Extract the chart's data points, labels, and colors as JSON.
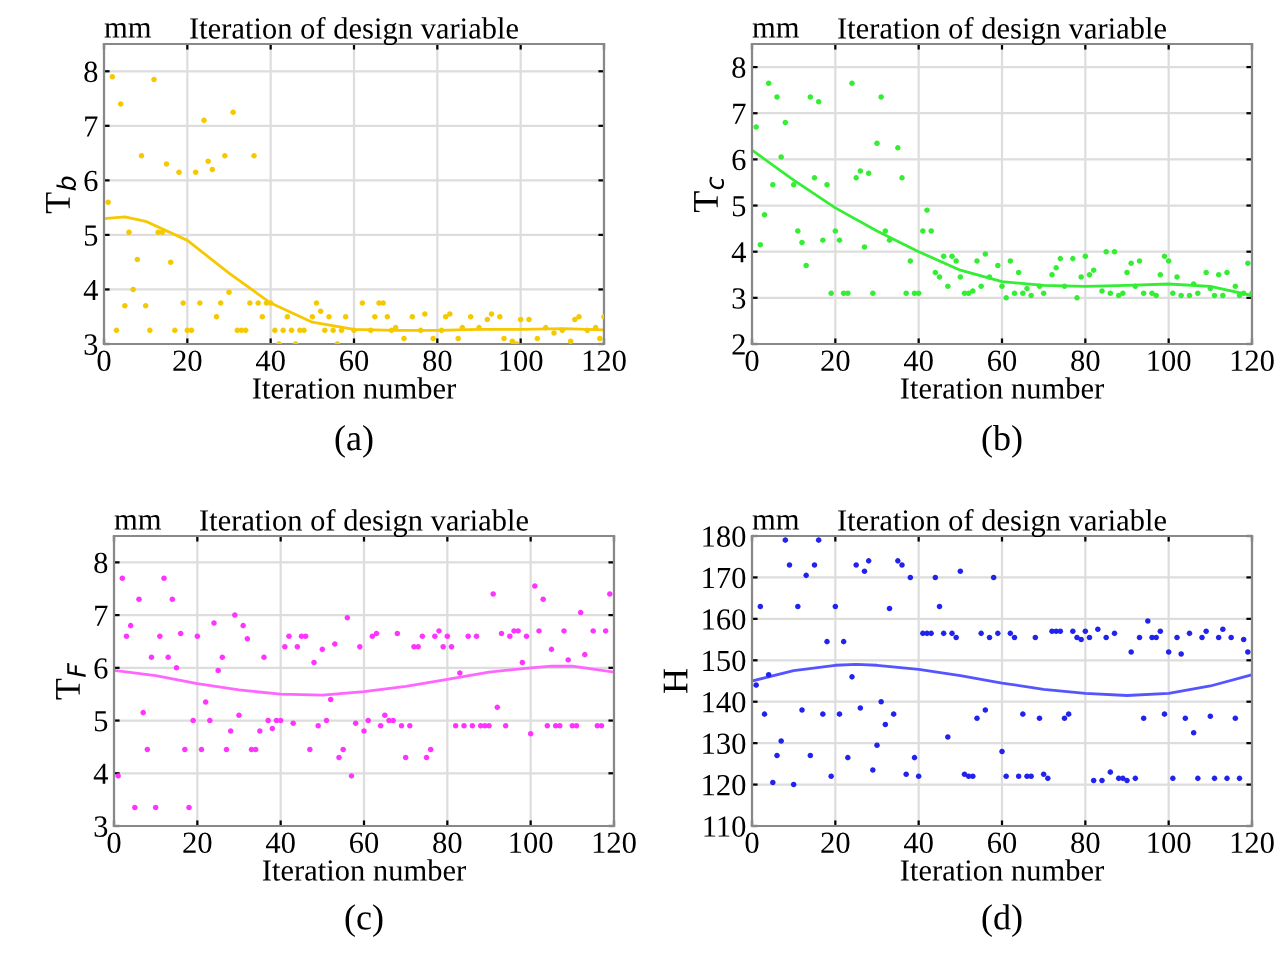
{
  "chart_data": [
    {
      "type": "scatter",
      "title": "Iteration of design variable",
      "xlabel": "Iteration number",
      "ylabel": "T$_{b}$",
      "annotations": [
        "mm",
        "(a)"
      ],
      "xlim": [
        0,
        120
      ],
      "xticks": [
        0,
        20,
        40,
        60,
        80,
        100,
        120
      ],
      "ylim": [
        3,
        8.5
      ],
      "yticks": [
        3,
        4,
        5,
        6,
        7,
        8
      ],
      "grid": true,
      "series": [
        {
          "marker": "circle",
          "color": "#f5c800",
          "x": [
            1,
            2,
            3,
            4,
            5,
            6,
            7,
            8,
            9,
            10,
            11,
            12,
            13,
            14,
            15,
            16,
            17,
            18,
            19,
            20,
            21,
            22,
            23,
            24,
            25,
            26,
            27,
            28,
            29,
            30,
            31,
            32,
            33,
            34,
            35,
            36,
            37,
            38,
            39,
            40,
            41,
            42,
            43,
            44,
            45,
            46,
            47,
            48,
            50,
            51,
            52,
            53,
            54,
            55,
            56,
            57,
            58,
            60,
            62,
            64,
            65,
            66,
            67,
            68,
            69,
            70,
            72,
            74,
            76,
            77,
            79,
            81,
            82,
            83,
            85,
            86,
            88,
            90,
            92,
            93,
            95,
            96,
            98,
            99,
            100,
            102,
            104,
            106,
            108,
            110,
            112,
            113,
            114,
            116,
            118,
            119,
            120
          ],
          "values": [
            5.6,
            7.9,
            3.25,
            7.4,
            3.7,
            5.05,
            4.0,
            4.55,
            6.45,
            3.7,
            3.25,
            7.85,
            5.05,
            5.05,
            6.3,
            4.5,
            3.25,
            6.15,
            3.75,
            3.25,
            3.25,
            6.15,
            3.75,
            7.1,
            6.35,
            6.2,
            3.5,
            3.75,
            6.45,
            3.95,
            7.25,
            3.25,
            3.25,
            3.25,
            3.75,
            6.45,
            3.75,
            3.5,
            3.75,
            3.75,
            3.25,
            3.0,
            3.25,
            3.5,
            3.25,
            3.0,
            3.25,
            3.25,
            3.5,
            3.75,
            3.6,
            3.25,
            3.5,
            3.25,
            3.0,
            3.25,
            3.5,
            3.25,
            3.75,
            3.25,
            3.5,
            3.75,
            3.75,
            3.5,
            3.25,
            3.3,
            3.1,
            3.5,
            3.25,
            3.55,
            3.1,
            3.25,
            3.5,
            3.55,
            3.1,
            3.3,
            3.5,
            3.3,
            3.45,
            3.55,
            3.5,
            3.1,
            3.05,
            3.0,
            3.45,
            3.45,
            3.1,
            3.3,
            3.2,
            3.25,
            3.05,
            3.45,
            3.5,
            3.25,
            3.3,
            3.1,
            3.5
          ]
        },
        {
          "type": "line",
          "color": "#f5c800",
          "x": [
            0,
            5,
            10,
            20,
            30,
            40,
            50,
            60,
            70,
            80,
            90,
            100,
            110,
            120
          ],
          "values": [
            5.3,
            5.33,
            5.25,
            4.9,
            4.3,
            3.75,
            3.4,
            3.27,
            3.25,
            3.25,
            3.27,
            3.27,
            3.28,
            3.26
          ]
        }
      ]
    },
    {
      "type": "scatter",
      "title": "Iteration of design variable",
      "xlabel": "Iteration number",
      "ylabel": "T$_{c}$",
      "annotations": [
        "mm",
        "(b)"
      ],
      "xlim": [
        0,
        120
      ],
      "xticks": [
        0,
        20,
        40,
        60,
        80,
        100,
        120
      ],
      "ylim": [
        2,
        8.5
      ],
      "yticks": [
        2,
        3,
        4,
        5,
        6,
        7,
        8
      ],
      "grid": true,
      "series": [
        {
          "marker": "circle",
          "color": "#33ee33",
          "x": [
            1,
            2,
            3,
            4,
            5,
            6,
            7,
            8,
            10,
            11,
            12,
            13,
            14,
            15,
            16,
            17,
            18,
            19,
            20,
            21,
            22,
            23,
            24,
            25,
            26,
            27,
            28,
            29,
            30,
            31,
            32,
            33,
            35,
            36,
            37,
            38,
            39,
            40,
            41,
            42,
            43,
            44,
            45,
            46,
            47,
            48,
            49,
            50,
            51,
            52,
            53,
            54,
            55,
            56,
            57,
            59,
            60,
            61,
            62,
            63,
            64,
            65,
            66,
            67,
            69,
            70,
            72,
            73,
            74,
            75,
            77,
            78,
            79,
            80,
            81,
            82,
            84,
            85,
            86,
            87,
            88,
            89,
            90,
            91,
            92,
            93,
            94,
            96,
            97,
            98,
            99,
            100,
            101,
            102,
            103,
            105,
            106,
            107,
            109,
            110,
            111,
            112,
            113,
            114,
            116,
            117,
            118,
            119,
            120
          ],
          "values": [
            6.7,
            4.15,
            4.8,
            7.65,
            5.45,
            7.35,
            6.05,
            6.8,
            5.45,
            4.45,
            4.2,
            3.7,
            7.35,
            5.6,
            7.25,
            4.25,
            5.45,
            3.1,
            4.45,
            4.25,
            3.1,
            3.1,
            7.65,
            5.6,
            5.75,
            4.1,
            5.7,
            3.1,
            6.35,
            7.35,
            4.45,
            4.25,
            6.25,
            5.6,
            3.1,
            3.8,
            3.1,
            3.1,
            4.45,
            4.9,
            4.45,
            3.55,
            3.45,
            3.9,
            3.25,
            3.9,
            3.8,
            3.45,
            3.1,
            3.1,
            3.15,
            3.8,
            3.25,
            3.95,
            3.45,
            3.7,
            3.25,
            3.0,
            3.8,
            3.1,
            3.55,
            3.1,
            3.2,
            3.05,
            3.25,
            3.1,
            3.5,
            3.65,
            3.85,
            3.25,
            3.85,
            3.0,
            3.45,
            3.9,
            3.5,
            3.6,
            3.15,
            4.0,
            3.1,
            4.0,
            3.05,
            3.1,
            3.55,
            3.75,
            3.25,
            3.8,
            3.1,
            3.1,
            3.05,
            3.5,
            3.9,
            3.8,
            3.1,
            3.45,
            3.05,
            3.05,
            3.3,
            3.1,
            3.55,
            3.2,
            3.05,
            3.5,
            3.05,
            3.55,
            3.25,
            3.05,
            3.1,
            3.75,
            3.1
          ]
        },
        {
          "type": "line",
          "color": "#33ee33",
          "x": [
            0,
            10,
            20,
            30,
            40,
            50,
            60,
            70,
            80,
            90,
            100,
            110,
            120
          ],
          "values": [
            6.2,
            5.55,
            4.95,
            4.45,
            4.0,
            3.6,
            3.35,
            3.27,
            3.25,
            3.27,
            3.3,
            3.25,
            3.05
          ]
        }
      ]
    },
    {
      "type": "scatter",
      "title": "Iteration of design variable",
      "xlabel": "Iteration number",
      "ylabel": "T$_{F}$",
      "annotations": [
        "mm",
        "(c)"
      ],
      "xlim": [
        0,
        120
      ],
      "xticks": [
        0,
        20,
        40,
        60,
        80,
        100,
        120
      ],
      "ylim": [
        3,
        8.5
      ],
      "yticks": [
        3,
        4,
        5,
        6,
        7,
        8
      ],
      "grid": true,
      "series": [
        {
          "marker": "circle",
          "color": "#ff33ff",
          "x": [
            1,
            2,
            3,
            4,
            5,
            6,
            7,
            8,
            9,
            10,
            11,
            12,
            13,
            14,
            15,
            16,
            17,
            18,
            19,
            20,
            21,
            22,
            23,
            24,
            25,
            26,
            27,
            28,
            29,
            30,
            31,
            32,
            33,
            34,
            35,
            36,
            37,
            38,
            39,
            40,
            41,
            42,
            43,
            44,
            45,
            46,
            47,
            48,
            49,
            50,
            51,
            52,
            53,
            54,
            55,
            56,
            57,
            58,
            59,
            60,
            61,
            62,
            63,
            64,
            65,
            66,
            67,
            68,
            69,
            70,
            71,
            72,
            73,
            74,
            75,
            76,
            77,
            78,
            79,
            80,
            81,
            82,
            83,
            84,
            85,
            86,
            87,
            88,
            89,
            90,
            91,
            92,
            93,
            94,
            95,
            96,
            97,
            98,
            99,
            100,
            101,
            102,
            103,
            104,
            105,
            106,
            107,
            108,
            109,
            110,
            111,
            112,
            113,
            115,
            116,
            117,
            118,
            119
          ],
          "values": [
            3.95,
            7.7,
            6.6,
            6.8,
            3.35,
            7.3,
            5.15,
            4.45,
            6.2,
            3.35,
            6.6,
            7.7,
            6.2,
            7.3,
            6.0,
            6.65,
            4.45,
            3.35,
            5.0,
            6.6,
            4.45,
            5.35,
            5.0,
            6.85,
            5.95,
            6.2,
            4.45,
            4.8,
            7.0,
            5.1,
            6.8,
            6.55,
            4.45,
            4.45,
            4.8,
            6.2,
            5.0,
            4.85,
            5.0,
            5.0,
            6.4,
            6.6,
            4.95,
            6.4,
            6.6,
            6.6,
            4.45,
            6.1,
            4.9,
            6.35,
            5.0,
            5.4,
            6.45,
            4.3,
            4.45,
            6.95,
            3.95,
            4.95,
            6.4,
            4.8,
            5.0,
            6.6,
            6.65,
            4.9,
            5.1,
            5.0,
            5.0,
            6.65,
            4.9,
            4.3,
            4.9,
            6.4,
            6.4,
            6.6,
            4.3,
            4.45,
            6.6,
            6.7,
            6.4,
            6.6,
            6.4,
            4.9,
            5.9,
            4.9,
            6.6,
            4.9,
            6.6,
            4.9,
            4.9,
            4.9,
            7.4,
            5.25,
            6.65,
            4.9,
            6.6,
            6.7,
            6.7,
            6.1,
            6.6,
            4.75,
            7.55,
            6.7,
            7.3,
            4.9,
            6.35,
            4.9,
            4.9,
            6.7,
            6.15,
            4.9,
            4.9,
            7.05,
            6.25,
            6.7,
            4.9,
            4.9,
            6.7,
            7.4
          ]
        },
        {
          "type": "line",
          "color": "#ff66ff",
          "x": [
            0,
            10,
            20,
            30,
            40,
            50,
            60,
            70,
            80,
            90,
            100,
            105,
            110,
            120
          ],
          "values": [
            5.95,
            5.85,
            5.7,
            5.58,
            5.5,
            5.48,
            5.55,
            5.65,
            5.78,
            5.92,
            6.0,
            6.03,
            6.03,
            5.92
          ]
        }
      ]
    },
    {
      "type": "scatter",
      "title": "Iteration of design variable",
      "xlabel": "Iteration number",
      "ylabel": "H",
      "annotations": [
        "mm",
        "(d)"
      ],
      "xlim": [
        0,
        120
      ],
      "xticks": [
        0,
        20,
        40,
        60,
        80,
        100,
        120
      ],
      "ylim": [
        110,
        180
      ],
      "yticks": [
        110,
        120,
        130,
        140,
        150,
        160,
        170,
        180
      ],
      "grid": true,
      "series": [
        {
          "marker": "circle",
          "color": "#2222ee",
          "x": [
            1,
            2,
            3,
            4,
            5,
            6,
            7,
            8,
            9,
            10,
            11,
            12,
            13,
            14,
            15,
            16,
            17,
            18,
            19,
            20,
            21,
            22,
            23,
            24,
            25,
            26,
            27,
            28,
            29,
            30,
            31,
            32,
            33,
            34,
            35,
            36,
            37,
            38,
            39,
            40,
            41,
            42,
            43,
            44,
            45,
            46,
            47,
            48,
            49,
            50,
            51,
            52,
            53,
            54,
            55,
            56,
            57,
            58,
            59,
            60,
            61,
            62,
            63,
            64,
            65,
            66,
            67,
            68,
            69,
            70,
            71,
            72,
            73,
            74,
            75,
            76,
            77,
            78,
            79,
            80,
            81,
            82,
            83,
            84,
            85,
            86,
            87,
            88,
            89,
            90,
            91,
            92,
            93,
            94,
            95,
            96,
            97,
            98,
            99,
            100,
            101,
            102,
            103,
            104,
            105,
            106,
            107,
            108,
            109,
            110,
            111,
            112,
            113,
            114,
            115,
            116,
            117,
            118,
            119
          ],
          "values": [
            144,
            163,
            137,
            146.5,
            120.5,
            127,
            130.5,
            179,
            173,
            120,
            163,
            138,
            170.5,
            127,
            173,
            179,
            137,
            154.5,
            122,
            163,
            137,
            154.5,
            126.5,
            146,
            173,
            138.5,
            171.5,
            174,
            123.5,
            129.5,
            140,
            134.5,
            162.5,
            137,
            174,
            173,
            122.5,
            170,
            126.5,
            122,
            156.5,
            156.5,
            156.5,
            170,
            163,
            156.5,
            131.5,
            156.5,
            155.5,
            171.5,
            122.5,
            122,
            122,
            136,
            156.5,
            138,
            155.5,
            170,
            156.5,
            128,
            122,
            156.5,
            155.5,
            122,
            137,
            122,
            122,
            155.5,
            136,
            122.5,
            121.5,
            157,
            157,
            157,
            136,
            137,
            157,
            155.5,
            155,
            157,
            155.5,
            121,
            157.5,
            121,
            155.5,
            123,
            156.5,
            121.5,
            121.5,
            121,
            152,
            121.5,
            155.5,
            136,
            159.5,
            155.5,
            155.5,
            157,
            137,
            152,
            121.5,
            155.5,
            151.5,
            136,
            156.5,
            132.5,
            121.5,
            155.5,
            157,
            136.5,
            121.5,
            155.5,
            157.5,
            121.5,
            155.5,
            136,
            121.5,
            155,
            152
          ]
        },
        {
          "type": "line",
          "color": "#5555ff",
          "x": [
            0,
            10,
            20,
            25,
            30,
            40,
            50,
            60,
            70,
            80,
            90,
            100,
            110,
            120
          ],
          "values": [
            145,
            147.5,
            148.8,
            149,
            148.8,
            147.8,
            146.3,
            144.5,
            143,
            142,
            141.5,
            142,
            143.8,
            146.5
          ]
        }
      ]
    }
  ]
}
